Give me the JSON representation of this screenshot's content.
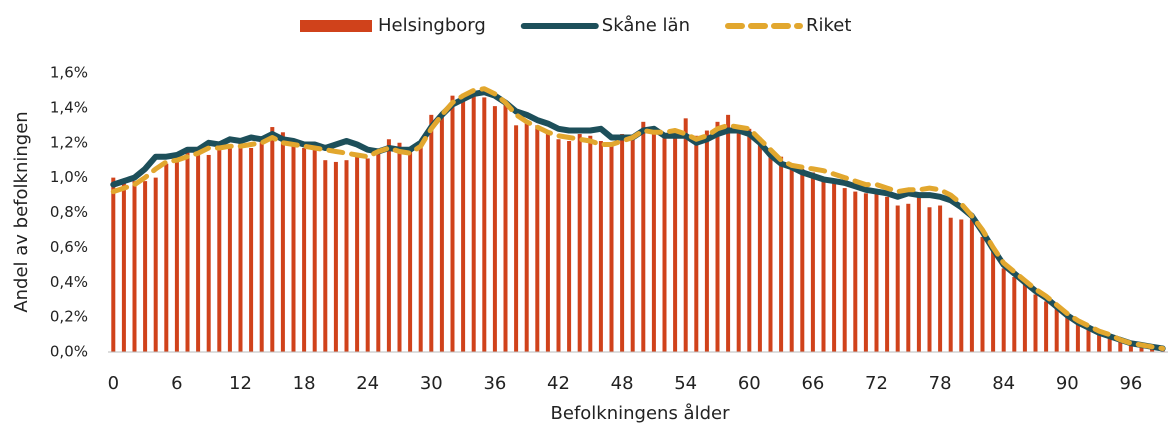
{
  "chart_data": {
    "type": "bar_line",
    "xlabel": "Befolkningens ålder",
    "ylabel": "Andel av befolkningen",
    "categories": [
      "0",
      null,
      null,
      null,
      null,
      null,
      "6",
      null,
      null,
      null,
      null,
      null,
      "12",
      null,
      null,
      null,
      null,
      null,
      "18",
      null,
      null,
      null,
      null,
      null,
      "24",
      null,
      null,
      null,
      null,
      null,
      "30",
      null,
      null,
      null,
      null,
      null,
      "36",
      null,
      null,
      null,
      null,
      null,
      "42",
      null,
      null,
      null,
      null,
      null,
      "48",
      null,
      null,
      null,
      null,
      null,
      "54",
      null,
      null,
      null,
      null,
      null,
      "60",
      null,
      null,
      null,
      null,
      null,
      "66",
      null,
      null,
      null,
      null,
      null,
      "72",
      null,
      null,
      null,
      null,
      null,
      "78",
      null,
      null,
      null,
      null,
      null,
      "84",
      null,
      null,
      null,
      null,
      null,
      "90",
      null,
      null,
      null,
      null,
      null,
      "96",
      null,
      null,
      null
    ],
    "series": [
      {
        "name": "Helsingborg",
        "kind": "bar",
        "color": "#d0421b",
        "values": [
          1.0,
          0.97,
          0.98,
          0.98,
          1.0,
          1.08,
          1.1,
          1.17,
          1.15,
          1.13,
          1.17,
          1.18,
          1.2,
          1.17,
          1.22,
          1.29,
          1.26,
          1.18,
          1.17,
          1.18,
          1.1,
          1.09,
          1.1,
          1.12,
          1.11,
          1.15,
          1.22,
          1.2,
          1.15,
          1.2,
          1.36,
          1.35,
          1.47,
          1.48,
          1.47,
          1.46,
          1.41,
          1.42,
          1.3,
          1.32,
          1.3,
          1.25,
          1.22,
          1.21,
          1.25,
          1.24,
          1.21,
          1.2,
          1.25,
          1.24,
          1.32,
          1.26,
          1.25,
          1.25,
          1.34,
          1.24,
          1.27,
          1.32,
          1.36,
          1.3,
          1.28,
          1.23,
          1.17,
          1.12,
          1.08,
          1.05,
          1.03,
          0.98,
          0.97,
          0.94,
          0.92,
          0.91,
          0.92,
          0.89,
          0.84,
          0.85,
          0.9,
          0.83,
          0.84,
          0.77,
          0.76,
          0.76,
          0.66,
          0.58,
          0.48,
          0.43,
          0.4,
          0.33,
          0.29,
          0.25,
          0.21,
          0.17,
          0.14,
          0.11,
          0.09,
          0.07,
          0.05,
          0.04,
          0.03,
          0.02
        ]
      },
      {
        "name": "Skåne län",
        "kind": "line",
        "color": "#1d4f5a",
        "values": [
          0.96,
          0.98,
          1.0,
          1.05,
          1.12,
          1.12,
          1.13,
          1.16,
          1.16,
          1.2,
          1.19,
          1.22,
          1.21,
          1.23,
          1.22,
          1.25,
          1.22,
          1.21,
          1.19,
          1.19,
          1.17,
          1.19,
          1.21,
          1.19,
          1.16,
          1.15,
          1.17,
          1.16,
          1.16,
          1.2,
          1.29,
          1.36,
          1.42,
          1.45,
          1.48,
          1.49,
          1.47,
          1.43,
          1.38,
          1.36,
          1.33,
          1.31,
          1.28,
          1.27,
          1.27,
          1.27,
          1.28,
          1.23,
          1.23,
          1.23,
          1.27,
          1.28,
          1.24,
          1.24,
          1.24,
          1.2,
          1.22,
          1.25,
          1.27,
          1.27,
          1.25,
          1.2,
          1.13,
          1.08,
          1.06,
          1.03,
          1.01,
          0.99,
          0.98,
          0.97,
          0.95,
          0.93,
          0.92,
          0.91,
          0.89,
          0.91,
          0.9,
          0.9,
          0.89,
          0.87,
          0.83,
          0.78,
          0.69,
          0.59,
          0.5,
          0.45,
          0.4,
          0.35,
          0.31,
          0.26,
          0.21,
          0.17,
          0.14,
          0.11,
          0.09,
          0.07,
          0.05,
          0.04,
          0.03,
          0.02
        ]
      },
      {
        "name": "Riket",
        "kind": "dashed",
        "color": "#e2a72e",
        "values": [
          0.92,
          0.94,
          0.96,
          1.0,
          1.05,
          1.09,
          1.1,
          1.12,
          1.14,
          1.17,
          1.17,
          1.18,
          1.18,
          1.19,
          1.2,
          1.23,
          1.2,
          1.19,
          1.18,
          1.17,
          1.16,
          1.15,
          1.14,
          1.13,
          1.12,
          1.15,
          1.17,
          1.15,
          1.14,
          1.18,
          1.28,
          1.36,
          1.43,
          1.47,
          1.5,
          1.51,
          1.48,
          1.43,
          1.36,
          1.32,
          1.29,
          1.26,
          1.24,
          1.23,
          1.22,
          1.21,
          1.19,
          1.19,
          1.21,
          1.23,
          1.27,
          1.26,
          1.26,
          1.27,
          1.25,
          1.22,
          1.24,
          1.28,
          1.3,
          1.29,
          1.28,
          1.22,
          1.16,
          1.1,
          1.07,
          1.06,
          1.05,
          1.04,
          1.02,
          1.0,
          0.98,
          0.96,
          0.96,
          0.94,
          0.92,
          0.93,
          0.93,
          0.94,
          0.93,
          0.9,
          0.85,
          0.78,
          0.7,
          0.6,
          0.51,
          0.46,
          0.41,
          0.36,
          0.32,
          0.27,
          0.22,
          0.18,
          0.15,
          0.12,
          0.1,
          0.07,
          0.05,
          0.04,
          0.03,
          0.02
        ]
      }
    ],
    "ylim": [
      0,
      1.6
    ],
    "yticks": [
      {
        "value": 0,
        "label": "0,0%"
      },
      {
        "value": 0.2,
        "label": "0,2%"
      },
      {
        "value": 0.4,
        "label": "0,4%"
      },
      {
        "value": 0.6,
        "label": "0,6%"
      },
      {
        "value": 0.8,
        "label": "0,8%"
      },
      {
        "value": 1.0,
        "label": "1,0%"
      },
      {
        "value": 1.2,
        "label": "1,2%"
      },
      {
        "value": 1.4,
        "label": "1,4%"
      },
      {
        "value": 1.6,
        "label": "1,6%"
      }
    ],
    "legend": "top"
  }
}
